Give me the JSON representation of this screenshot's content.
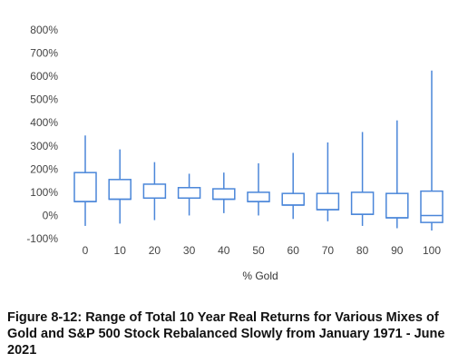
{
  "chart_data": {
    "type": "box",
    "xlabel": "% Gold",
    "ylabel": "",
    "categories": [
      "0",
      "10",
      "20",
      "30",
      "40",
      "50",
      "60",
      "70",
      "80",
      "90",
      "100"
    ],
    "y_ticks": [
      "-100%",
      "0%",
      "100%",
      "200%",
      "300%",
      "400%",
      "500%",
      "600%",
      "700%",
      "800%"
    ],
    "ylim": [
      -100,
      800
    ],
    "grid": false,
    "series": [
      {
        "min": [
          -45,
          -35,
          -20,
          0,
          10,
          0,
          -15,
          -25,
          -45,
          -55,
          -65
        ],
        "q1": [
          60,
          70,
          75,
          75,
          70,
          60,
          45,
          25,
          5,
          -10,
          -30
        ],
        "median": [
          60,
          70,
          75,
          75,
          70,
          60,
          45,
          25,
          5,
          -10,
          0
        ],
        "q3": [
          185,
          155,
          135,
          120,
          115,
          100,
          95,
          95,
          100,
          95,
          105
        ],
        "max": [
          345,
          285,
          230,
          180,
          185,
          225,
          270,
          315,
          360,
          410,
          625
        ]
      }
    ],
    "colors": {
      "box": "#4a86d9"
    }
  },
  "caption": "Figure 8-12: Range of Total 10 Year Real Returns for Various Mixes of Gold and S&P 500 Stock Rebalanced Slowly  from January 1971 - June 2021"
}
